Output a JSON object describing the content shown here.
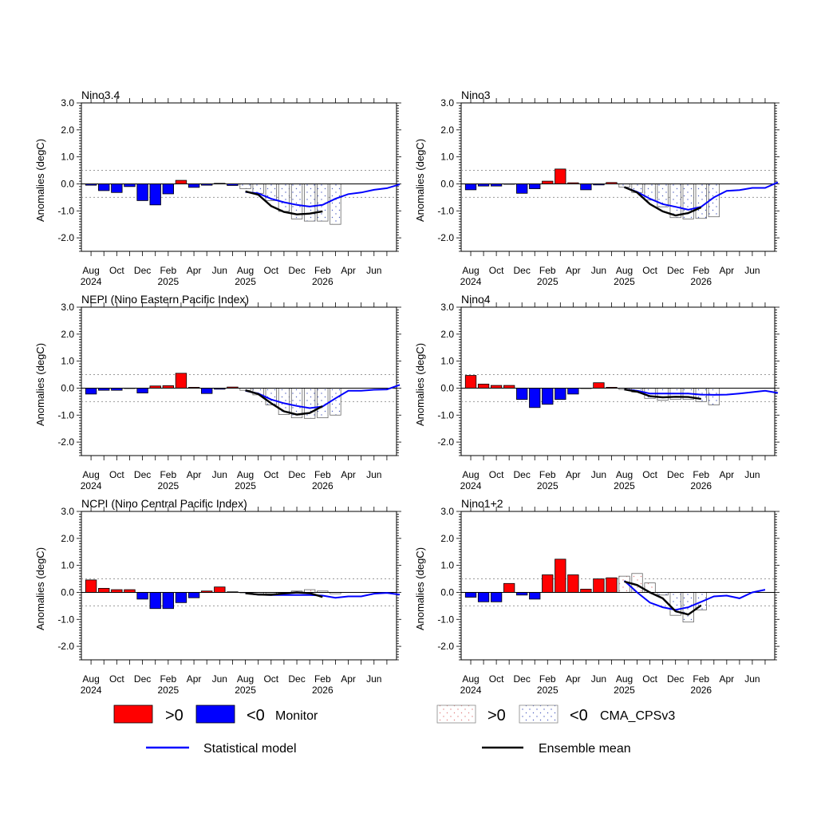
{
  "colors": {
    "monitor_pos": "#ff0000",
    "monitor_neg": "#0000ff",
    "statistical_line": "#0000ff",
    "ensemble_line": "#000000",
    "cps_dots_pos": "#e08080",
    "cps_dots_neg": "#5060c0",
    "threshold_line": "#999999"
  },
  "legend": {
    "pos_label": ">0",
    "neg_label": "<0",
    "monitor_label": "Monitor",
    "cps_label": "CMA_CPSv3",
    "statistical_label": "Statistical model",
    "ensemble_label": "Ensemble mean"
  },
  "chart_data": [
    {
      "type": "bar",
      "title": "Nino3.4",
      "ylabel": "Anomalies (degC)",
      "ylim": [
        -2.5,
        3.0
      ],
      "yticks": [
        "3.0",
        "2.0",
        "1.0",
        "0.0",
        "-1.0",
        "-2.0"
      ],
      "threshold": 0.5,
      "x_tick_labels": [
        [
          "Aug",
          "2024"
        ],
        [
          "Oct",
          ""
        ],
        [
          "Dec",
          ""
        ],
        [
          "Feb",
          "2025"
        ],
        [
          "Apr",
          ""
        ],
        [
          "Jun",
          ""
        ],
        [
          "Aug",
          "2025"
        ],
        [
          "Oct",
          ""
        ],
        [
          "Dec",
          ""
        ],
        [
          "Feb",
          "2026"
        ],
        [
          "Apr",
          ""
        ],
        [
          "Jun",
          ""
        ]
      ],
      "monitor": [
        -0.05,
        -0.25,
        -0.32,
        -0.1,
        -0.62,
        -0.78,
        -0.37,
        0.13,
        -0.13,
        -0.05,
        0.02,
        -0.06
      ],
      "cps_start": 12,
      "cps": [
        -0.18,
        -0.35,
        -0.62,
        -1.02,
        -1.3,
        -1.38,
        -1.38,
        -1.5
      ],
      "ensemble_start": 12,
      "ensemble": [
        -0.28,
        -0.4,
        -0.82,
        -1.04,
        -1.13,
        -1.1,
        -1.02
      ],
      "statistical_start": 12,
      "statistical": [
        -0.3,
        -0.35,
        -0.55,
        -0.68,
        -0.78,
        -0.84,
        -0.78,
        -0.55,
        -0.38,
        -0.32,
        -0.22,
        -0.16,
        -0.02
      ]
    },
    {
      "type": "bar",
      "title": "Nino3",
      "ylabel": "Anomalies (degC)",
      "ylim": [
        -2.5,
        3.0
      ],
      "yticks": [
        "3.0",
        "2.0",
        "1.0",
        "0.0",
        "-1.0",
        "-2.0"
      ],
      "threshold": 0.5,
      "x_tick_labels": [
        [
          "Aug",
          "2024"
        ],
        [
          "Oct",
          ""
        ],
        [
          "Dec",
          ""
        ],
        [
          "Feb",
          "2025"
        ],
        [
          "Apr",
          ""
        ],
        [
          "Jun",
          ""
        ],
        [
          "Aug",
          "2025"
        ],
        [
          "Oct",
          ""
        ],
        [
          "Dec",
          ""
        ],
        [
          "Feb",
          "2026"
        ],
        [
          "Apr",
          ""
        ],
        [
          "Jun",
          ""
        ]
      ],
      "monitor": [
        -0.22,
        -0.08,
        -0.08,
        0.0,
        -0.35,
        -0.18,
        0.1,
        0.55,
        0.04,
        -0.22,
        -0.04,
        0.05
      ],
      "cps_start": 12,
      "cps": [
        -0.12,
        -0.32,
        -0.6,
        -0.85,
        -1.25,
        -1.3,
        -1.28,
        -1.22
      ],
      "ensemble_start": 12,
      "ensemble": [
        -0.12,
        -0.32,
        -0.75,
        -1.02,
        -1.17,
        -1.08,
        -0.87
      ],
      "statistical_start": 12,
      "statistical": [
        -0.12,
        -0.3,
        -0.55,
        -0.75,
        -0.85,
        -0.96,
        -0.85,
        -0.5,
        -0.26,
        -0.23,
        -0.15,
        -0.15,
        0.06
      ]
    },
    {
      "type": "bar",
      "title": "NEPI (Nino Eastern Pacific Index)",
      "ylabel": "Anomalies (degC)",
      "ylim": [
        -2.5,
        3.0
      ],
      "yticks": [
        "3.0",
        "2.0",
        "1.0",
        "0.0",
        "-1.0",
        "-2.0"
      ],
      "threshold": 0.5,
      "x_tick_labels": [
        [
          "Aug",
          "2024"
        ],
        [
          "Oct",
          ""
        ],
        [
          "Dec",
          ""
        ],
        [
          "Feb",
          "2025"
        ],
        [
          "Apr",
          ""
        ],
        [
          "Jun",
          ""
        ],
        [
          "Aug",
          "2025"
        ],
        [
          "Oct",
          ""
        ],
        [
          "Dec",
          ""
        ],
        [
          "Feb",
          "2026"
        ],
        [
          "Apr",
          ""
        ],
        [
          "Jun",
          ""
        ]
      ],
      "monitor": [
        -0.22,
        -0.08,
        -0.08,
        0.0,
        -0.18,
        0.08,
        0.09,
        0.55,
        0.03,
        -0.2,
        -0.04,
        0.04
      ],
      "cps_start": 12,
      "cps": [
        -0.08,
        -0.25,
        -0.62,
        -0.98,
        -1.1,
        -1.12,
        -1.1,
        -1.0
      ],
      "ensemble_start": 12,
      "ensemble": [
        -0.08,
        -0.22,
        -0.56,
        -0.86,
        -0.98,
        -0.92,
        -0.67
      ],
      "statistical_start": 12,
      "statistical": [
        -0.1,
        -0.2,
        -0.42,
        -0.56,
        -0.66,
        -0.74,
        -0.68,
        -0.38,
        -0.1,
        -0.1,
        -0.06,
        -0.05,
        0.12
      ]
    },
    {
      "type": "bar",
      "title": "Nino4",
      "ylabel": "Anomalies (degC)",
      "ylim": [
        -2.5,
        3.0
      ],
      "yticks": [
        "3.0",
        "2.0",
        "1.0",
        "0.0",
        "-1.0",
        "-2.0"
      ],
      "threshold": 0.5,
      "x_tick_labels": [
        [
          "Aug",
          "2024"
        ],
        [
          "Oct",
          ""
        ],
        [
          "Dec",
          ""
        ],
        [
          "Feb",
          "2025"
        ],
        [
          "Apr",
          ""
        ],
        [
          "Jun",
          ""
        ],
        [
          "Aug",
          "2025"
        ],
        [
          "Oct",
          ""
        ],
        [
          "Dec",
          ""
        ],
        [
          "Feb",
          "2026"
        ],
        [
          "Apr",
          ""
        ],
        [
          "Jun",
          ""
        ]
      ],
      "monitor": [
        0.47,
        0.15,
        0.1,
        0.1,
        -0.42,
        -0.72,
        -0.6,
        -0.42,
        -0.22,
        0.0,
        0.2,
        0.03
      ],
      "cps_start": 12,
      "cps": [
        -0.05,
        -0.15,
        -0.38,
        -0.45,
        -0.42,
        -0.42,
        -0.5,
        -0.62
      ],
      "ensemble_start": 12,
      "ensemble": [
        -0.05,
        -0.13,
        -0.3,
        -0.34,
        -0.32,
        -0.33,
        -0.4
      ],
      "statistical_start": 12,
      "statistical": [
        -0.05,
        -0.1,
        -0.2,
        -0.2,
        -0.2,
        -0.2,
        -0.24,
        -0.25,
        -0.24,
        -0.2,
        -0.15,
        -0.1,
        -0.18
      ]
    },
    {
      "type": "bar",
      "title": "NCPI (Nino Central Pacific Index)",
      "ylabel": "Anomalies (degC)",
      "ylim": [
        -2.5,
        3.0
      ],
      "yticks": [
        "3.0",
        "2.0",
        "1.0",
        "0.0",
        "-1.0",
        "-2.0"
      ],
      "threshold": 0.5,
      "x_tick_labels": [
        [
          "Aug",
          "2024"
        ],
        [
          "Oct",
          ""
        ],
        [
          "Dec",
          ""
        ],
        [
          "Feb",
          "2025"
        ],
        [
          "Apr",
          ""
        ],
        [
          "Jun",
          ""
        ],
        [
          "Aug",
          "2025"
        ],
        [
          "Oct",
          ""
        ],
        [
          "Dec",
          ""
        ],
        [
          "Feb",
          "2026"
        ],
        [
          "Apr",
          ""
        ],
        [
          "Jun",
          ""
        ]
      ],
      "monitor": [
        0.46,
        0.15,
        0.1,
        0.1,
        -0.25,
        -0.6,
        -0.6,
        -0.38,
        -0.2,
        0.05,
        0.2,
        0.02
      ],
      "cps_start": 12,
      "cps": [
        -0.02,
        -0.05,
        -0.05,
        -0.05,
        0.05,
        0.1,
        0.05,
        -0.05
      ],
      "ensemble_start": 12,
      "ensemble": [
        -0.03,
        -0.08,
        -0.09,
        -0.04,
        0.0,
        -0.03,
        -0.17
      ],
      "statistical_start": 12,
      "statistical": [
        -0.03,
        -0.08,
        -0.1,
        -0.1,
        -0.1,
        -0.1,
        -0.12,
        -0.2,
        -0.15,
        -0.15,
        -0.05,
        -0.02,
        -0.08
      ]
    },
    {
      "type": "bar",
      "title": "Nino1+2",
      "ylabel": "Anomalies (degC)",
      "ylim": [
        -2.5,
        3.0
      ],
      "yticks": [
        "3.0",
        "2.0",
        "1.0",
        "0.0",
        "-1.0",
        "-2.0"
      ],
      "threshold": 0.5,
      "x_tick_labels": [
        [
          "Aug",
          "2024"
        ],
        [
          "Oct",
          ""
        ],
        [
          "Dec",
          ""
        ],
        [
          "Feb",
          "2025"
        ],
        [
          "Apr",
          ""
        ],
        [
          "Jun",
          ""
        ],
        [
          "Aug",
          "2025"
        ],
        [
          "Oct",
          ""
        ],
        [
          "Dec",
          ""
        ],
        [
          "Feb",
          "2026"
        ],
        [
          "Apr",
          ""
        ],
        [
          "Jun",
          ""
        ]
      ],
      "monitor": [
        -0.18,
        -0.35,
        -0.35,
        0.33,
        -0.1,
        -0.25,
        0.65,
        1.23,
        0.65,
        0.12,
        0.5,
        0.54
      ],
      "cps_start": 12,
      "cps": [
        0.6,
        0.7,
        0.35,
        -0.1,
        -0.85,
        -1.1,
        -0.65
      ],
      "ensemble_start": 12,
      "ensemble": [
        0.4,
        0.27,
        0.0,
        -0.22,
        -0.7,
        -0.82,
        -0.48
      ],
      "statistical_start": 12,
      "statistical": [
        0.43,
        0.0,
        -0.38,
        -0.55,
        -0.65,
        -0.55,
        -0.35,
        -0.15,
        -0.12,
        -0.22,
        0.0,
        0.1
      ]
    }
  ]
}
